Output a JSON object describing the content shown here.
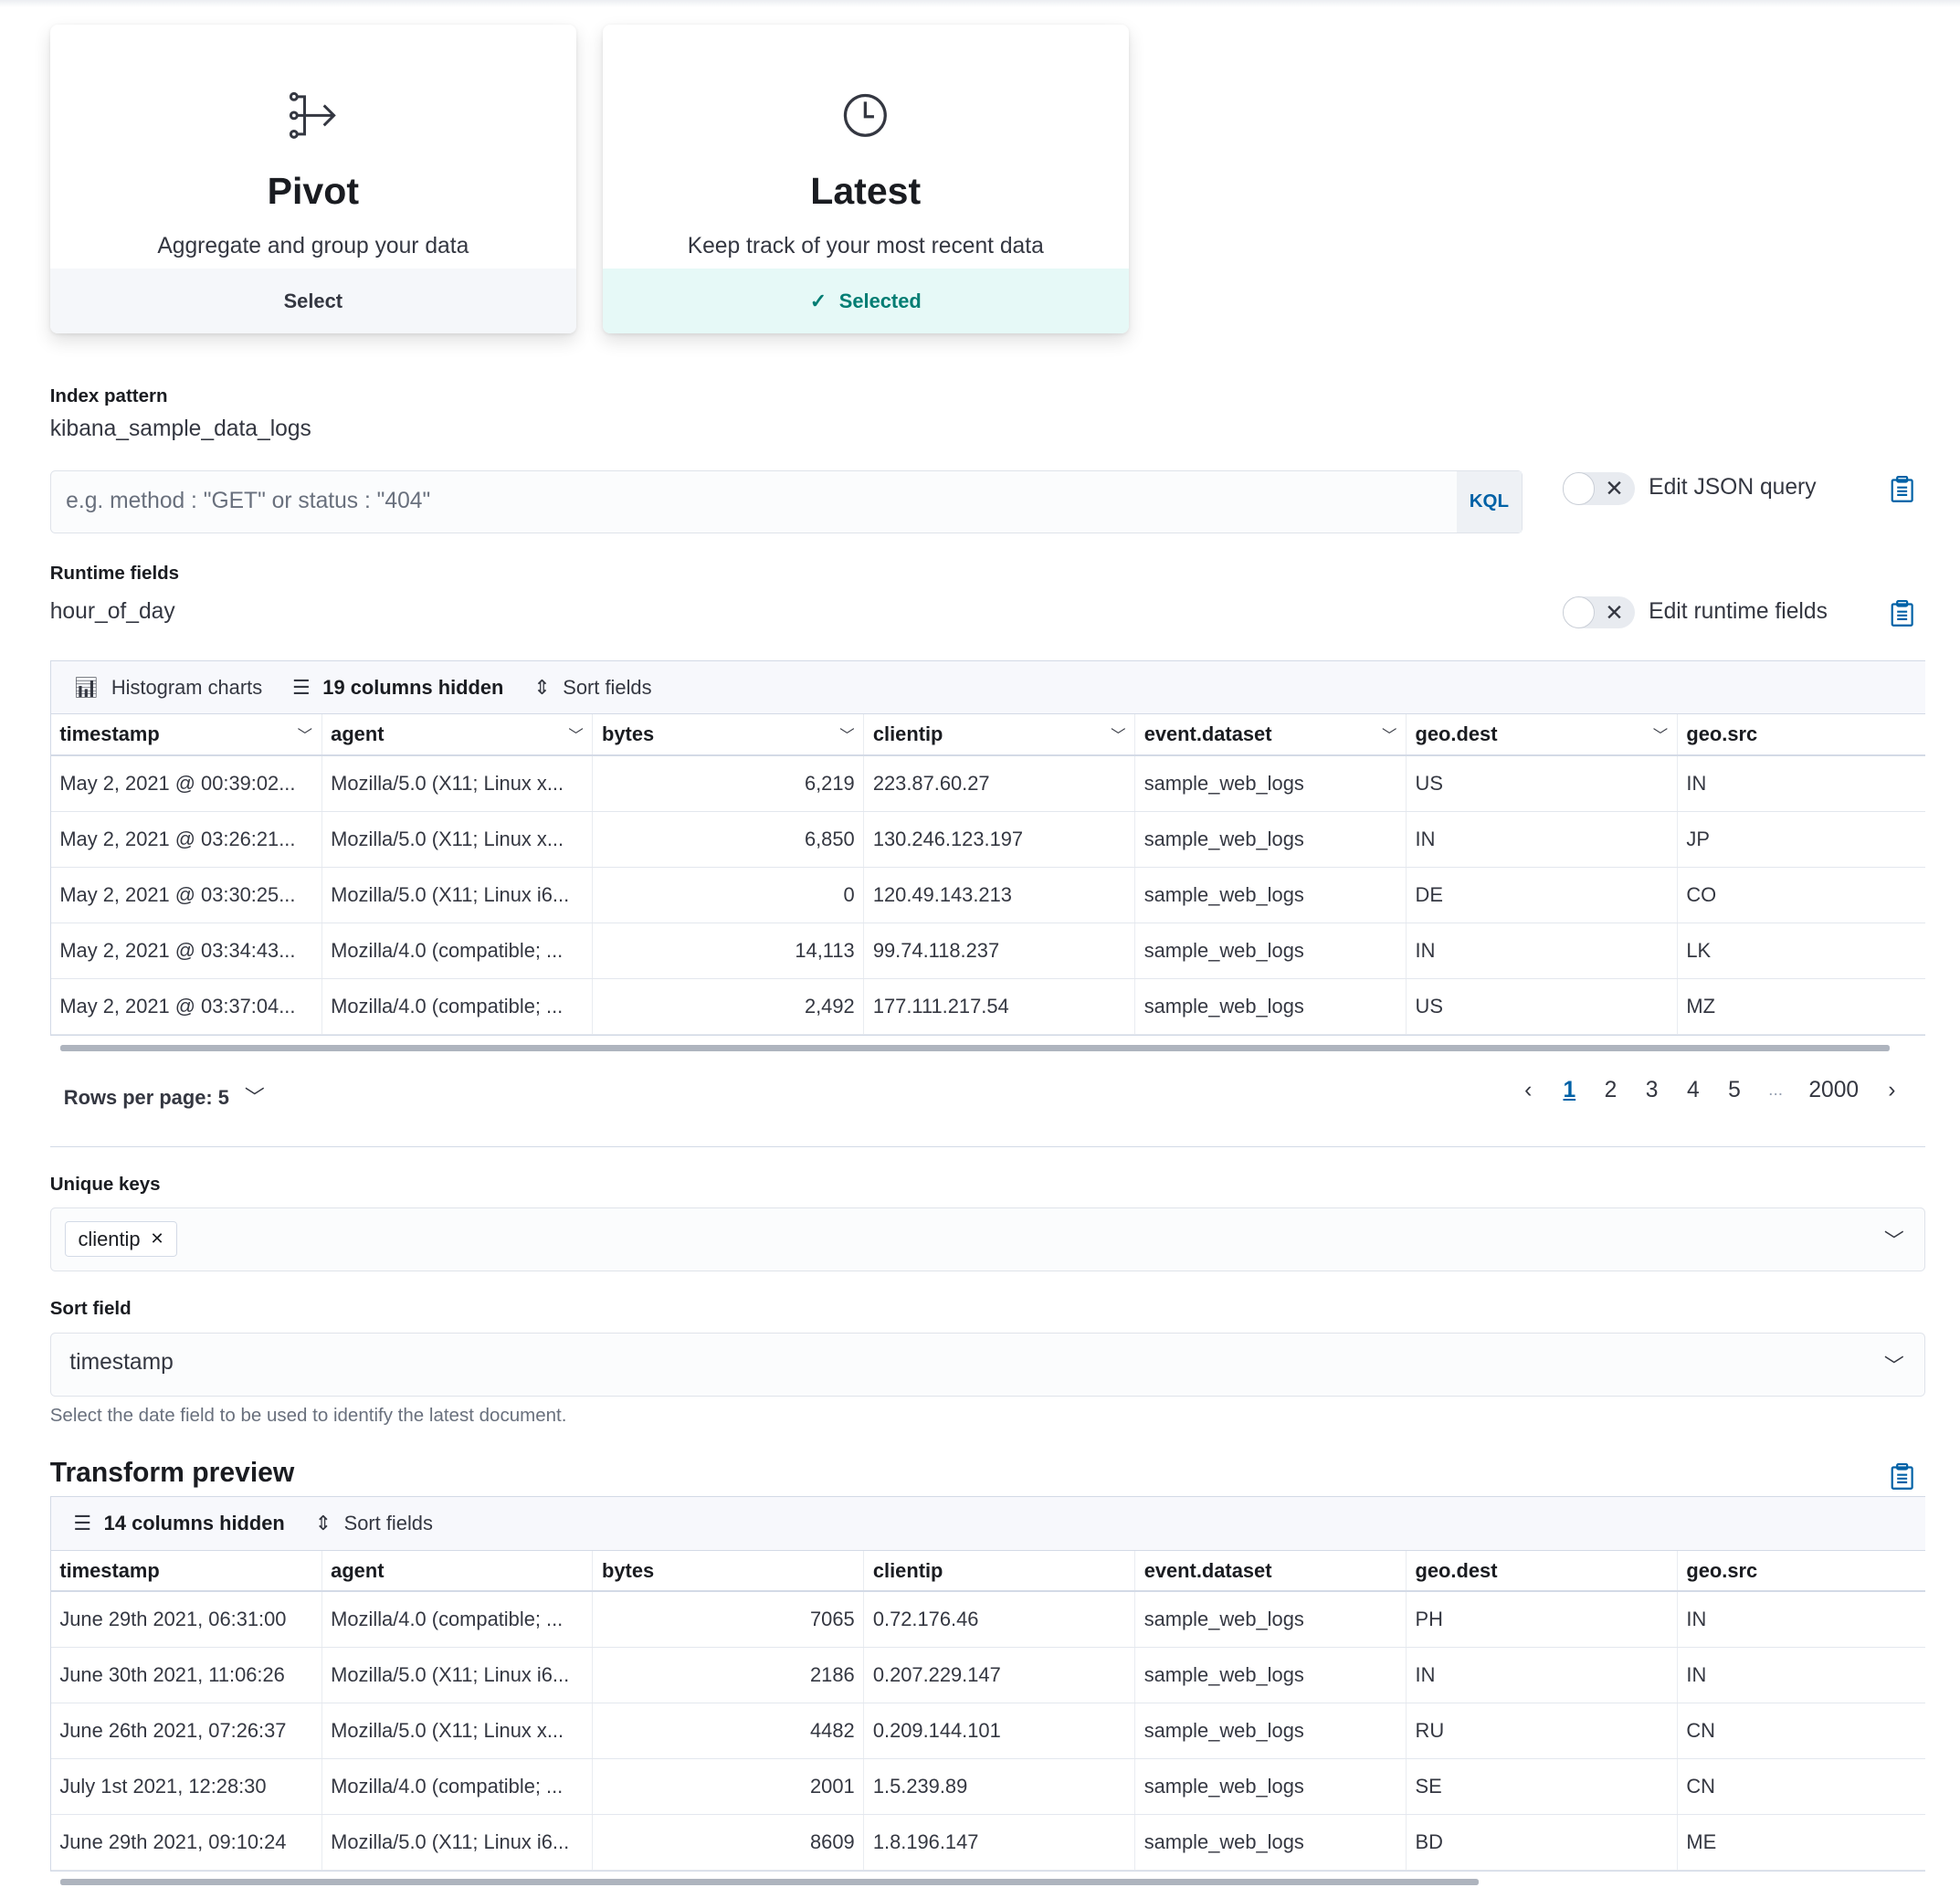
{
  "cards": [
    {
      "icon": "pivot-icon",
      "title": "Pivot",
      "description": "Aggregate and group your data",
      "action": "Select",
      "selected": false
    },
    {
      "icon": "clock-icon",
      "title": "Latest",
      "description": "Keep track of your most recent data",
      "action": "Selected",
      "selected": true
    }
  ],
  "index_pattern": {
    "label": "Index pattern",
    "value": "kibana_sample_data_logs"
  },
  "query": {
    "placeholder": "e.g. method : \"GET\" or status : \"404\"",
    "value": "",
    "language": "KQL",
    "json_toggle_label": "Edit JSON query",
    "json_toggle_on": false
  },
  "runtime_fields": {
    "label": "Runtime fields",
    "value": "hour_of_day",
    "toggle_label": "Edit runtime fields",
    "toggle_on": false
  },
  "source_grid": {
    "toolbar": {
      "histogram": "Histogram charts",
      "columns_hidden": "19 columns hidden",
      "sort": "Sort fields"
    },
    "columns": [
      "timestamp",
      "agent",
      "bytes",
      "clientip",
      "event.dataset",
      "geo.dest",
      "geo.src"
    ],
    "rows": [
      [
        "May 2, 2021 @ 00:39:02...",
        "Mozilla/5.0 (X11; Linux x...",
        "6,219",
        "223.87.60.27",
        "sample_web_logs",
        "US",
        "IN"
      ],
      [
        "May 2, 2021 @ 03:26:21...",
        "Mozilla/5.0 (X11; Linux x...",
        "6,850",
        "130.246.123.197",
        "sample_web_logs",
        "IN",
        "JP"
      ],
      [
        "May 2, 2021 @ 03:30:25...",
        "Mozilla/5.0 (X11; Linux i6...",
        "0",
        "120.49.143.213",
        "sample_web_logs",
        "DE",
        "CO"
      ],
      [
        "May 2, 2021 @ 03:34:43...",
        "Mozilla/4.0 (compatible; ...",
        "14,113",
        "99.74.118.237",
        "sample_web_logs",
        "IN",
        "LK"
      ],
      [
        "May 2, 2021 @ 03:37:04...",
        "Mozilla/4.0 (compatible; ...",
        "2,492",
        "177.111.217.54",
        "sample_web_logs",
        "US",
        "MZ"
      ]
    ],
    "pagination": {
      "rows_per_page": "Rows per page: 5",
      "pages": [
        "1",
        "2",
        "3",
        "4",
        "5",
        "...",
        "2000"
      ],
      "current": "1"
    }
  },
  "unique_keys": {
    "label": "Unique keys",
    "selected": [
      "clientip"
    ]
  },
  "sort_field": {
    "label": "Sort field",
    "value": "timestamp",
    "help": "Select the date field to be used to identify the latest document."
  },
  "preview": {
    "title": "Transform preview",
    "toolbar": {
      "columns_hidden": "14 columns hidden",
      "sort": "Sort fields"
    },
    "columns": [
      "timestamp",
      "agent",
      "bytes",
      "clientip",
      "event.dataset",
      "geo.dest",
      "geo.src"
    ],
    "rows": [
      [
        "June 29th 2021, 06:31:00",
        "Mozilla/4.0 (compatible; ...",
        "7065",
        "0.72.176.46",
        "sample_web_logs",
        "PH",
        "IN"
      ],
      [
        "June 30th 2021, 11:06:26",
        "Mozilla/5.0 (X11; Linux i6...",
        "2186",
        "0.207.229.147",
        "sample_web_logs",
        "IN",
        "IN"
      ],
      [
        "June 26th 2021, 07:26:37",
        "Mozilla/5.0 (X11; Linux x...",
        "4482",
        "0.209.144.101",
        "sample_web_logs",
        "RU",
        "CN"
      ],
      [
        "July 1st 2021, 12:28:30",
        "Mozilla/4.0 (compatible; ...",
        "2001",
        "1.5.239.89",
        "sample_web_logs",
        "SE",
        "CN"
      ],
      [
        "June 29th 2021, 09:10:24",
        "Mozilla/5.0 (X11; Linux i6...",
        "8609",
        "1.8.196.147",
        "sample_web_logs",
        "BD",
        "ME"
      ]
    ]
  },
  "colors": {
    "accent": "#0061a6",
    "selected": "#017d73",
    "selected_bg": "#e6f9f7"
  }
}
